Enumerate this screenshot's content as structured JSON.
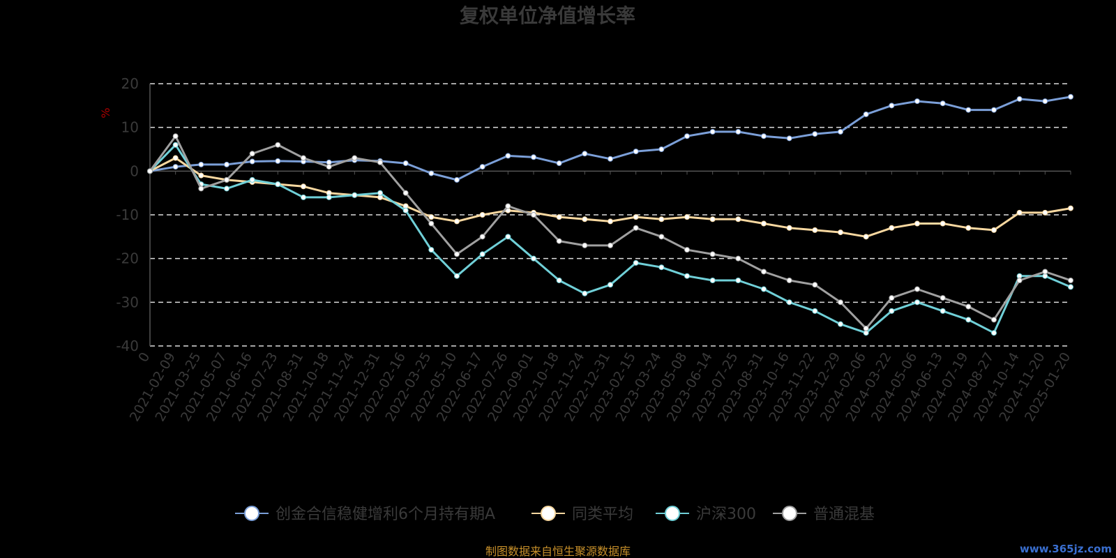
{
  "chart_data": {
    "type": "line",
    "title": "复权单位净值增长率",
    "ylabel": "%",
    "ylim": [
      -40,
      20
    ],
    "yticks": [
      "20",
      "10",
      "0",
      "-10",
      "-20",
      "-30",
      "-40"
    ],
    "grid": true,
    "legend_position": "bottom",
    "x_tick_labels": [
      "0",
      "2021-02-09",
      "2021-03-25",
      "2021-05-07",
      "2021-06-16",
      "2021-07-23",
      "2021-08-31",
      "2021-10-18",
      "2021-11-24",
      "2021-12-31",
      "2022-02-16",
      "2022-03-25",
      "2022-05-10",
      "2022-06-17",
      "2022-07-26",
      "2022-09-01",
      "2022-10-18",
      "2022-11-24",
      "2022-12-31",
      "2023-02-15",
      "2023-03-24",
      "2023-05-08",
      "2023-06-14",
      "2023-07-25",
      "2023-08-31",
      "2023-10-16",
      "2023-11-22",
      "2023-12-29",
      "2024-02-06",
      "2024-03-22",
      "2024-05-06",
      "2024-06-13",
      "2024-07-19",
      "2024-08-27",
      "2024-10-14",
      "2024-11-20",
      "2025-01-20"
    ],
    "series": [
      {
        "name": "创金合信稳健增利6个月持有期A",
        "color": "#7b9fd8",
        "values": [
          0,
          1,
          1.5,
          1.5,
          2.2,
          2.3,
          2.2,
          2,
          2.5,
          2.3,
          1.8,
          -0.5,
          -2,
          1,
          3.5,
          3.2,
          1.8,
          4,
          2.8,
          4.5,
          5,
          8,
          9,
          9,
          8,
          7.5,
          8.5,
          9,
          13,
          15,
          16,
          15.5,
          14,
          14,
          16.5,
          16,
          17
        ]
      },
      {
        "name": "同类平均",
        "color": "#f8d8a0",
        "values": [
          0,
          3,
          -1,
          -2,
          -2.5,
          -3,
          -3.5,
          -5,
          -5.5,
          -6,
          -8,
          -10.5,
          -11.5,
          -10,
          -9,
          -9.5,
          -10.5,
          -11,
          -11.5,
          -10.5,
          -11,
          -10.5,
          -11,
          -11,
          -12,
          -13,
          -13.5,
          -14,
          -15,
          -13,
          -12,
          -12,
          -13,
          -13.5,
          -9.5,
          -9.5,
          -8.5
        ]
      },
      {
        "name": "沪深300",
        "color": "#70d0d8",
        "values": [
          0,
          6,
          -3,
          -4,
          -2,
          -3,
          -6,
          -6,
          -5.5,
          -5,
          -9,
          -18,
          -24,
          -19,
          -15,
          -20,
          -25,
          -28,
          -26,
          -21,
          -22,
          -24,
          -25,
          -25,
          -27,
          -30,
          -32,
          -35,
          -37,
          -32,
          -30,
          -32,
          -34,
          -37,
          -24,
          -24,
          -26.5
        ]
      },
      {
        "name": "普通混基",
        "color": "#a0a0a0",
        "values": [
          0,
          8,
          -4,
          -2,
          4,
          6,
          3,
          1,
          3,
          2,
          -5,
          -12,
          -19,
          -15,
          -8,
          -10,
          -16,
          -17,
          -17,
          -13,
          -15,
          -18,
          -19,
          -20,
          -23,
          -25,
          -26,
          -30,
          -36,
          -29,
          -27,
          -29,
          -31,
          -34,
          -25,
          -23,
          -25
        ]
      }
    ]
  },
  "source_note": "制图数据来自恒生聚源数据库",
  "watermark": "www.365jz.com"
}
